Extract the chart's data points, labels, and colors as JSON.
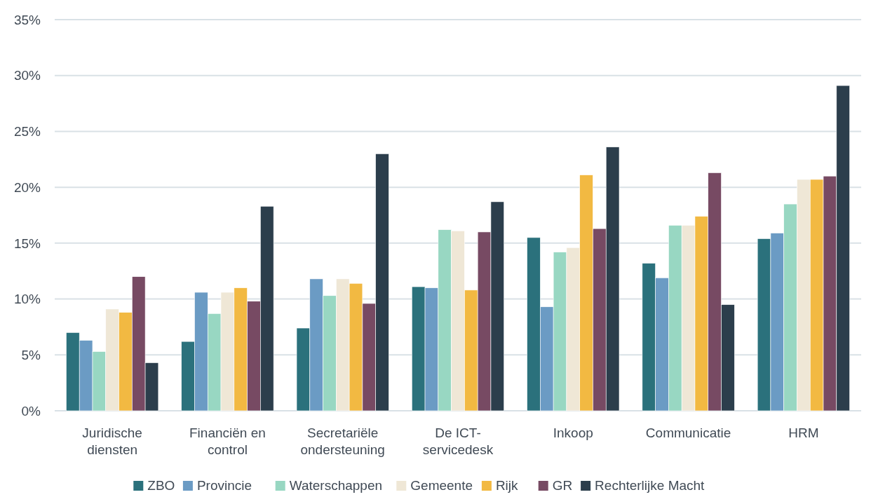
{
  "chart_data": {
    "type": "bar",
    "categories": [
      "Juridische diensten",
      "Financiën en control",
      "Secretariële ondersteuning",
      "De ICT-servicedesk",
      "Inkoop",
      "Communicatie",
      "HRM"
    ],
    "series": [
      {
        "name": "ZBO",
        "color": "#2b717c",
        "values": [
          7.0,
          6.2,
          7.4,
          11.1,
          15.5,
          13.2,
          15.4
        ]
      },
      {
        "name": "Provincie",
        "color": "#6b9bc4",
        "values": [
          6.3,
          10.6,
          11.8,
          11.0,
          9.3,
          11.9,
          15.9
        ]
      },
      {
        "name": "Waterschappen",
        "color": "#98d7c2",
        "values": [
          5.3,
          8.7,
          10.3,
          16.2,
          14.2,
          16.6,
          18.5
        ]
      },
      {
        "name": "Gemeente",
        "color": "#efe7d6",
        "values": [
          9.1,
          10.6,
          11.8,
          16.1,
          14.6,
          16.6,
          20.7
        ]
      },
      {
        "name": "Rijk",
        "color": "#f2b942",
        "values": [
          8.8,
          11.0,
          11.4,
          10.8,
          21.1,
          17.4,
          20.7
        ]
      },
      {
        "name": "GR",
        "color": "#774a63",
        "values": [
          12.0,
          9.8,
          9.6,
          16.0,
          16.3,
          21.3,
          21.0
        ]
      },
      {
        "name": "Rechterlijke Macht",
        "color": "#2c3e4c",
        "values": [
          4.3,
          18.3,
          23.0,
          18.7,
          23.6,
          9.5,
          29.1
        ]
      }
    ],
    "ylim": [
      0,
      35
    ],
    "yticks": [
      {
        "value": 0,
        "label": "0%"
      },
      {
        "value": 5,
        "label": "5%"
      },
      {
        "value": 10,
        "label": "10%"
      },
      {
        "value": 15,
        "label": "15%"
      },
      {
        "value": 20,
        "label": "20%"
      },
      {
        "value": 25,
        "label": "25%"
      },
      {
        "value": 30,
        "label": "30%"
      },
      {
        "value": 35,
        "label": "35%"
      }
    ],
    "grid": "y",
    "legend": "bottom"
  }
}
